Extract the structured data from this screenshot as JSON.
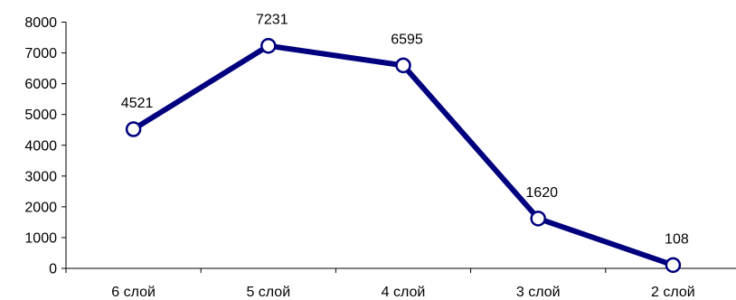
{
  "chart_data": {
    "type": "line",
    "title": "",
    "xlabel": "",
    "ylabel": "",
    "categories": [
      "6 слой",
      "5 слой",
      "4 слой",
      "3 слой",
      "2 слой"
    ],
    "series": [
      {
        "values": [
          4521,
          7231,
          6595,
          1620,
          108
        ]
      }
    ],
    "data_labels": [
      "4521",
      "7231",
      "6595",
      "1620",
      "108"
    ],
    "ylim": [
      0,
      8000
    ],
    "yticks": [
      0,
      1000,
      2000,
      3000,
      4000,
      5000,
      6000,
      7000,
      8000
    ],
    "ytick_labels": [
      "0",
      "1000",
      "2000",
      "3000",
      "4000",
      "5000",
      "6000",
      "7000",
      "8000"
    ],
    "grid": false,
    "legend": "none",
    "line_color": "#00007f",
    "marker_fill": "#ffffff",
    "marker_shape": "circle"
  }
}
